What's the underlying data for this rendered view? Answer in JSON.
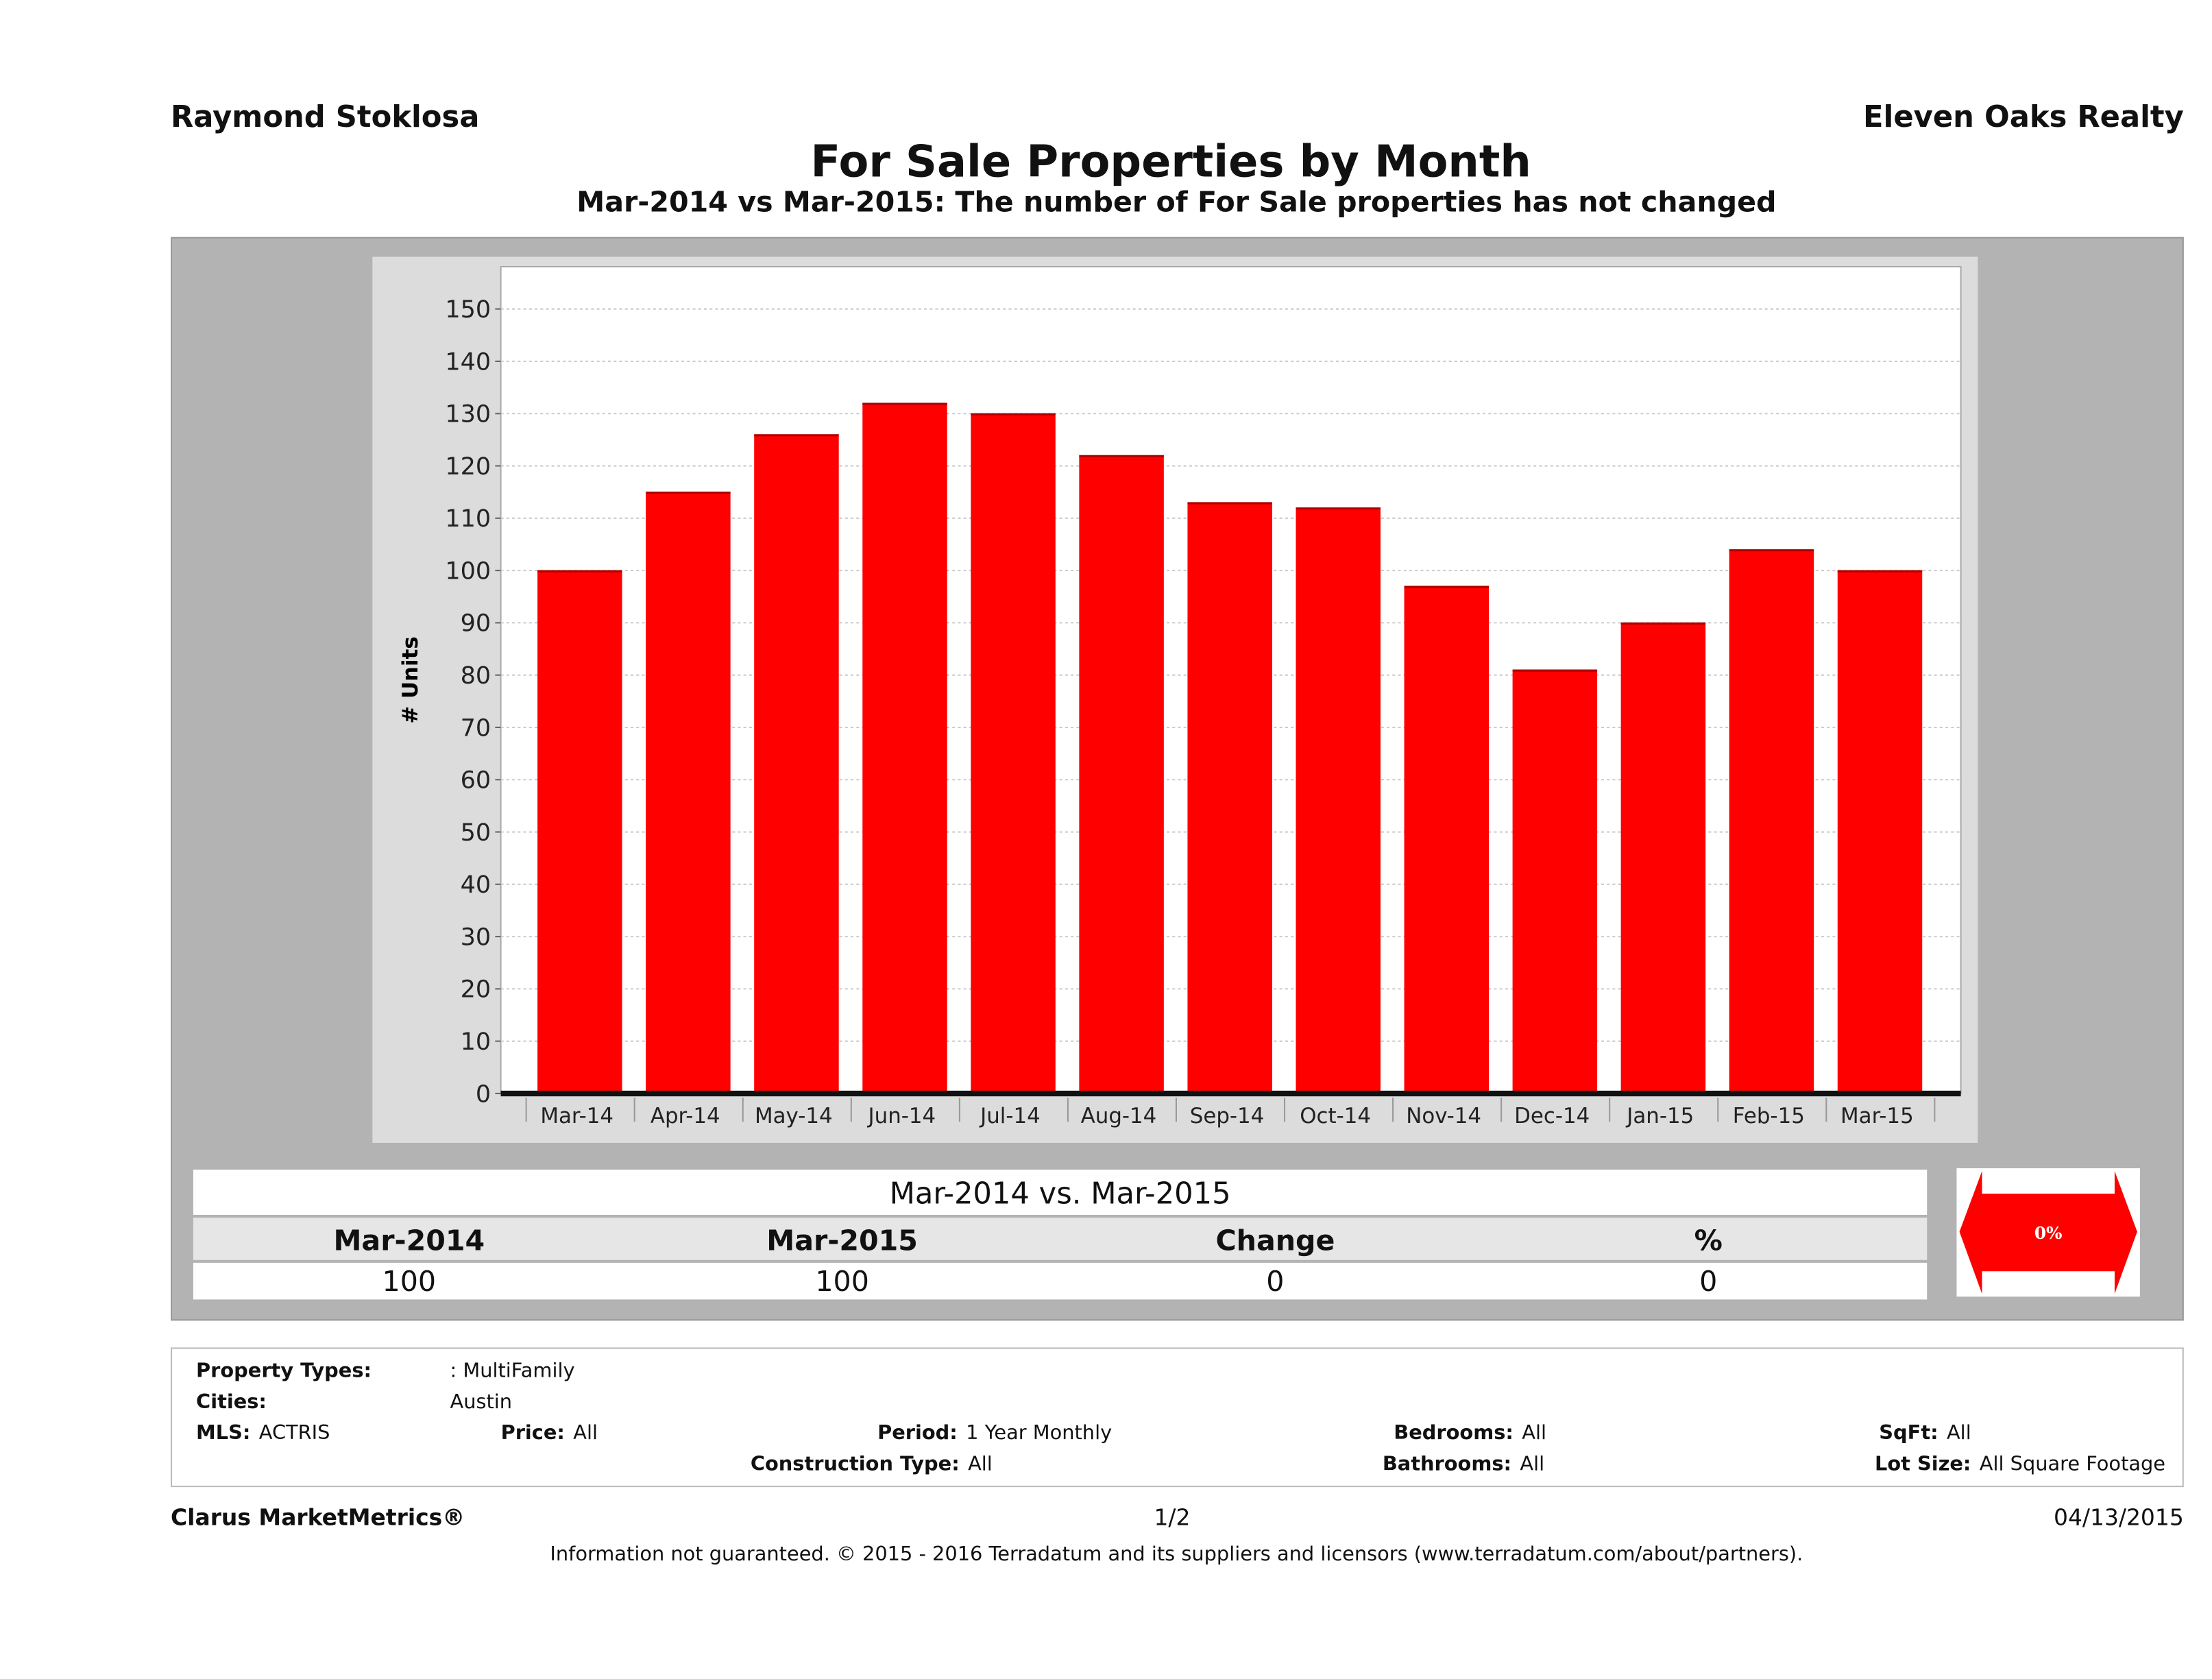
{
  "header": {
    "agent": "Raymond Stoklosa",
    "brand": "Eleven Oaks Realty",
    "title": "For Sale Properties by Month",
    "subtitle": "Mar-2014 vs Mar-2015: The number of For Sale  properties has not changed"
  },
  "chart_data": {
    "type": "bar",
    "ylabel": "# Units",
    "ylim": [
      0,
      150
    ],
    "yticks": [
      0,
      10,
      20,
      30,
      40,
      50,
      60,
      70,
      80,
      90,
      100,
      110,
      120,
      130,
      140,
      150
    ],
    "grid": true,
    "bar_color": "#ff0000",
    "categories": [
      "Mar-14",
      "Apr-14",
      "May-14",
      "Jun-14",
      "Jul-14",
      "Aug-14",
      "Sep-14",
      "Oct-14",
      "Nov-14",
      "Dec-14",
      "Jan-15",
      "Feb-15",
      "Mar-15"
    ],
    "values": [
      100,
      115,
      126,
      132,
      130,
      122,
      113,
      112,
      97,
      81,
      90,
      104,
      100
    ]
  },
  "comparison": {
    "title": "Mar-2014 vs. Mar-2015",
    "headers": [
      "Mar-2014",
      "Mar-2015",
      "Change",
      "%"
    ],
    "values": [
      "100",
      "100",
      "0",
      "0"
    ],
    "indicator": "0%",
    "indicator_color": "#ff0000"
  },
  "info": {
    "property_types_label": "Property Types:",
    "property_types": ": MultiFamily",
    "cities_label": "Cities:",
    "cities": "Austin",
    "mls_label": "MLS:",
    "mls": "ACTRIS",
    "price_label": "Price:",
    "price": "All",
    "period_label": "Period:",
    "period": "1 Year Monthly",
    "bedrooms_label": "Bedrooms:",
    "bedrooms": "All",
    "sqft_label": "SqFt:",
    "sqft": "All",
    "construction_label": "Construction Type:",
    "construction": "All",
    "bathrooms_label": "Bathrooms:",
    "bathrooms": "All",
    "lotsize_label": "Lot Size:",
    "lotsize": "All Square Footage"
  },
  "footer": {
    "left": "Clarus MarketMetrics®",
    "page": "1/2",
    "date": "04/13/2015",
    "disclaimer": "Information not guaranteed. © 2015 - 2016 Terradatum and its suppliers and licensors (www.terradatum.com/about/partners)."
  }
}
